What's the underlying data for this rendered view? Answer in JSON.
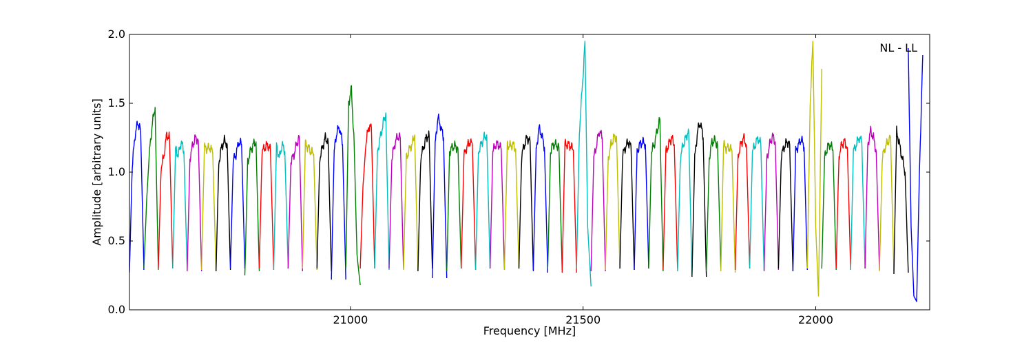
{
  "chart_data": {
    "type": "line",
    "title": "",
    "annotation": "NL - LL",
    "xlabel": "Frequency [MHz]",
    "ylabel": "Amplitude [arbitrary units]",
    "xlim": [
      20525,
      22245
    ],
    "ylim": [
      0.0,
      2.0
    ],
    "xticks": [
      21000,
      21500,
      22000
    ],
    "xtick_labels": [
      "21000",
      "21500",
      "22000"
    ],
    "yticks": [
      0.0,
      0.5,
      1.0,
      1.5,
      2.0
    ],
    "ytick_labels": [
      "0.0",
      "0.5",
      "1.0",
      "1.5",
      "2.0"
    ],
    "grid": false,
    "legend": "none",
    "color_cycle": [
      "#0000ff",
      "#008000",
      "#ff0000",
      "#00bfbf",
      "#bf00bf",
      "#bfbf00",
      "#000000"
    ],
    "background_trace_color": "#bbbbbb",
    "segment_width_mhz": 31.5,
    "series": [
      {
        "color": "#0000ff",
        "x": [
          20525,
          20531,
          20537,
          20543,
          20549,
          20556
        ],
        "y": [
          0.27,
          1.05,
          1.27,
          1.36,
          1.3,
          0.29
        ]
      },
      {
        "color": "#008000",
        "x": [
          20556,
          20562,
          20568,
          20574,
          20580,
          20587
        ],
        "y": [
          0.3,
          0.8,
          1.15,
          1.35,
          1.47,
          0.29
        ]
      },
      {
        "color": "#ff0000",
        "x": [
          20587,
          20593,
          20599,
          20605,
          20611,
          20618
        ],
        "y": [
          0.3,
          1.03,
          1.12,
          1.27,
          1.25,
          0.3
        ]
      },
      {
        "color": "#00bfbf",
        "x": [
          20618,
          20624,
          20630,
          20636,
          20642,
          20649
        ],
        "y": [
          0.3,
          1.17,
          1.12,
          1.22,
          1.15,
          0.29
        ]
      },
      {
        "color": "#bf00bf",
        "x": [
          20649,
          20655,
          20661,
          20667,
          20673,
          20680
        ],
        "y": [
          0.28,
          1.1,
          1.2,
          1.25,
          1.23,
          0.28
        ]
      },
      {
        "color": "#bfbf00",
        "x": [
          20680,
          20686,
          20692,
          20698,
          20704,
          20711
        ],
        "y": [
          0.29,
          1.18,
          1.17,
          1.18,
          1.14,
          0.28
        ]
      },
      {
        "color": "#000000",
        "x": [
          20711,
          20717,
          20723,
          20729,
          20735,
          20742
        ],
        "y": [
          0.28,
          1.07,
          1.18,
          1.23,
          1.2,
          0.29
        ]
      },
      {
        "color": "#0000ff",
        "x": [
          20742,
          20748,
          20754,
          20760,
          20766,
          20773
        ],
        "y": [
          0.3,
          1.08,
          1.13,
          1.22,
          1.2,
          0.3
        ]
      },
      {
        "color": "#008000",
        "x": [
          20773,
          20779,
          20785,
          20791,
          20797,
          20804
        ],
        "y": [
          0.25,
          1.07,
          1.15,
          1.2,
          1.22,
          0.28
        ]
      },
      {
        "color": "#ff0000",
        "x": [
          20804,
          20810,
          20816,
          20822,
          20828,
          20835
        ],
        "y": [
          0.3,
          1.15,
          1.18,
          1.2,
          1.16,
          0.29
        ]
      },
      {
        "color": "#00bfbf",
        "x": [
          20835,
          20841,
          20847,
          20853,
          20859,
          20866
        ],
        "y": [
          0.29,
          1.2,
          1.1,
          1.2,
          1.15,
          0.3
        ]
      },
      {
        "color": "#bf00bf",
        "x": [
          20866,
          20872,
          20878,
          20884,
          20890,
          20897
        ],
        "y": [
          0.3,
          1.08,
          1.12,
          1.2,
          1.26,
          0.28
        ]
      },
      {
        "color": "#bfbf00",
        "x": [
          20897,
          20903,
          20909,
          20915,
          20921,
          20928
        ],
        "y": [
          0.3,
          1.2,
          1.18,
          1.15,
          1.13,
          0.29
        ]
      },
      {
        "color": "#000000",
        "x": [
          20928,
          20934,
          20940,
          20946,
          20952,
          20959
        ],
        "y": [
          0.3,
          1.1,
          1.18,
          1.25,
          1.22,
          0.28
        ]
      },
      {
        "color": "#0000ff",
        "x": [
          20959,
          20965,
          20971,
          20977,
          20983,
          20990
        ],
        "y": [
          0.22,
          1.15,
          1.3,
          1.32,
          1.2,
          0.22
        ]
      },
      {
        "color": "#008000",
        "x": [
          20990,
          20996,
          21002,
          21008,
          21014,
          21021
        ],
        "y": [
          0.3,
          1.5,
          1.6,
          1.2,
          0.4,
          0.18
        ]
      },
      {
        "color": "#ff0000",
        "x": [
          21021,
          21027,
          21033,
          21039,
          21045,
          21052
        ],
        "y": [
          0.3,
          0.9,
          1.2,
          1.33,
          1.32,
          0.3
        ]
      },
      {
        "color": "#00bfbf",
        "x": [
          21052,
          21058,
          21064,
          21070,
          21076,
          21083
        ],
        "y": [
          0.3,
          1.15,
          1.25,
          1.35,
          1.43,
          0.29
        ]
      },
      {
        "color": "#bf00bf",
        "x": [
          21083,
          21089,
          21095,
          21101,
          21107,
          21114
        ],
        "y": [
          0.3,
          1.1,
          1.2,
          1.26,
          1.25,
          0.3
        ]
      },
      {
        "color": "#bfbf00",
        "x": [
          21114,
          21120,
          21126,
          21132,
          21138,
          21145
        ],
        "y": [
          0.29,
          1.1,
          1.16,
          1.2,
          1.27,
          0.29
        ]
      },
      {
        "color": "#000000",
        "x": [
          21145,
          21151,
          21157,
          21163,
          21169,
          21176
        ],
        "y": [
          0.28,
          1.1,
          1.18,
          1.25,
          1.27,
          0.3
        ]
      },
      {
        "color": "#0000ff",
        "x": [
          21176,
          21182,
          21188,
          21194,
          21200,
          21207
        ],
        "y": [
          0.23,
          1.2,
          1.4,
          1.33,
          1.25,
          0.23
        ]
      },
      {
        "color": "#008000",
        "x": [
          21207,
          21213,
          21219,
          21225,
          21231,
          21238
        ],
        "y": [
          0.28,
          1.15,
          1.18,
          1.19,
          1.17,
          0.3
        ]
      },
      {
        "color": "#ff0000",
        "x": [
          21238,
          21244,
          21250,
          21256,
          21262,
          21269
        ],
        "y": [
          0.3,
          1.12,
          1.18,
          1.22,
          1.2,
          0.29
        ]
      },
      {
        "color": "#00bfbf",
        "x": [
          21269,
          21275,
          21281,
          21287,
          21293,
          21300
        ],
        "y": [
          0.29,
          1.15,
          1.2,
          1.25,
          1.27,
          0.3
        ]
      },
      {
        "color": "#bf00bf",
        "x": [
          21300,
          21306,
          21312,
          21318,
          21324,
          21331
        ],
        "y": [
          0.3,
          1.15,
          1.2,
          1.2,
          1.17,
          0.29
        ]
      },
      {
        "color": "#bfbf00",
        "x": [
          21331,
          21337,
          21343,
          21349,
          21355,
          21362
        ],
        "y": [
          0.29,
          1.2,
          1.19,
          1.2,
          1.17,
          0.3
        ]
      },
      {
        "color": "#000000",
        "x": [
          21362,
          21368,
          21374,
          21380,
          21386,
          21393
        ],
        "y": [
          0.3,
          1.12,
          1.2,
          1.25,
          1.22,
          0.29
        ]
      },
      {
        "color": "#0000ff",
        "x": [
          21393,
          21399,
          21405,
          21411,
          21417,
          21424
        ],
        "y": [
          0.28,
          1.15,
          1.32,
          1.27,
          1.18,
          0.27
        ]
      },
      {
        "color": "#008000",
        "x": [
          21424,
          21430,
          21436,
          21442,
          21448,
          21455
        ],
        "y": [
          0.3,
          1.15,
          1.2,
          1.2,
          1.18,
          0.29
        ]
      },
      {
        "color": "#ff0000",
        "x": [
          21455,
          21461,
          21467,
          21473,
          21479,
          21486
        ],
        "y": [
          0.27,
          1.2,
          1.2,
          1.19,
          1.16,
          0.27
        ]
      },
      {
        "color": "#00bfbf",
        "x": [
          21486,
          21492,
          21498,
          21504,
          21510,
          21517
        ],
        "y": [
          0.3,
          1.3,
          1.6,
          1.95,
          0.6,
          0.17
        ]
      },
      {
        "color": "#bf00bf",
        "x": [
          21517,
          21523,
          21529,
          21535,
          21541,
          21548
        ],
        "y": [
          0.28,
          1.1,
          1.2,
          1.3,
          1.25,
          0.28
        ]
      },
      {
        "color": "#bfbf00",
        "x": [
          21548,
          21554,
          21560,
          21566,
          21572,
          21579
        ],
        "y": [
          0.29,
          1.1,
          1.2,
          1.25,
          1.26,
          0.3
        ]
      },
      {
        "color": "#000000",
        "x": [
          21579,
          21585,
          21591,
          21597,
          21603,
          21610
        ],
        "y": [
          0.3,
          1.12,
          1.18,
          1.22,
          1.18,
          0.29
        ]
      },
      {
        "color": "#0000ff",
        "x": [
          21610,
          21616,
          21622,
          21628,
          21634,
          21641
        ],
        "y": [
          0.29,
          1.15,
          1.2,
          1.22,
          1.2,
          0.3
        ]
      },
      {
        "color": "#008000",
        "x": [
          21641,
          21647,
          21653,
          21659,
          21665,
          21672
        ],
        "y": [
          0.3,
          1.15,
          1.2,
          1.3,
          1.38,
          0.28
        ]
      },
      {
        "color": "#ff0000",
        "x": [
          21672,
          21678,
          21684,
          21690,
          21696,
          21703
        ],
        "y": [
          0.29,
          1.15,
          1.2,
          1.25,
          1.2,
          0.3
        ]
      },
      {
        "color": "#00bfbf",
        "x": [
          21703,
          21709,
          21715,
          21721,
          21727,
          21734
        ],
        "y": [
          0.28,
          1.1,
          1.2,
          1.25,
          1.3,
          0.26
        ]
      },
      {
        "color": "#000000",
        "x": [
          21734,
          21740,
          21746,
          21752,
          21758,
          21765
        ],
        "y": [
          0.24,
          1.1,
          1.3,
          1.36,
          1.25,
          0.24
        ]
      },
      {
        "color": "#008000",
        "x": [
          21765,
          21771,
          21777,
          21783,
          21789,
          21796
        ],
        "y": [
          0.28,
          1.1,
          1.22,
          1.23,
          1.2,
          0.3
        ]
      },
      {
        "color": "#bfbf00",
        "x": [
          21796,
          21802,
          21808,
          21814,
          21820,
          21827
        ],
        "y": [
          0.28,
          1.2,
          1.17,
          1.18,
          1.15,
          0.27
        ]
      },
      {
        "color": "#ff0000",
        "x": [
          21827,
          21833,
          21839,
          21845,
          21851,
          21858
        ],
        "y": [
          0.29,
          1.12,
          1.2,
          1.25,
          1.2,
          0.3
        ]
      },
      {
        "color": "#00bfbf",
        "x": [
          21858,
          21864,
          21870,
          21876,
          21882,
          21889
        ],
        "y": [
          0.3,
          1.15,
          1.2,
          1.25,
          1.2,
          0.29
        ]
      },
      {
        "color": "#bf00bf",
        "x": [
          21889,
          21895,
          21901,
          21907,
          21913,
          21920
        ],
        "y": [
          0.28,
          1.1,
          1.2,
          1.26,
          1.22,
          0.29
        ]
      },
      {
        "color": "#000000",
        "x": [
          21920,
          21926,
          21932,
          21938,
          21944,
          21951
        ],
        "y": [
          0.3,
          1.12,
          1.18,
          1.22,
          1.2,
          0.28
        ]
      },
      {
        "color": "#0000ff",
        "x": [
          21951,
          21957,
          21963,
          21969,
          21975,
          21982
        ],
        "y": [
          0.28,
          1.15,
          1.2,
          1.24,
          1.18,
          0.29
        ]
      },
      {
        "color": "#bfbf00",
        "x": [
          21982,
          21988,
          21994,
          22000,
          22006,
          22013
        ],
        "y": [
          0.3,
          1.5,
          1.95,
          0.6,
          0.1,
          1.75
        ]
      },
      {
        "color": "#008000",
        "x": [
          22013,
          22019,
          22025,
          22031,
          22037,
          22044
        ],
        "y": [
          0.3,
          1.1,
          1.18,
          1.2,
          1.16,
          0.29
        ]
      },
      {
        "color": "#ff0000",
        "x": [
          22044,
          22050,
          22056,
          22062,
          22068,
          22075
        ],
        "y": [
          0.3,
          1.12,
          1.2,
          1.22,
          1.18,
          0.29
        ]
      },
      {
        "color": "#00bfbf",
        "x": [
          22075,
          22081,
          22087,
          22093,
          22099,
          22106
        ],
        "y": [
          0.29,
          1.15,
          1.2,
          1.25,
          1.22,
          0.3
        ]
      },
      {
        "color": "#bf00bf",
        "x": [
          22106,
          22112,
          22118,
          22124,
          22130,
          22137
        ],
        "y": [
          0.3,
          1.2,
          1.3,
          1.25,
          1.15,
          0.29
        ]
      },
      {
        "color": "#bfbf00",
        "x": [
          22137,
          22143,
          22149,
          22155,
          22161,
          22168
        ],
        "y": [
          0.28,
          1.1,
          1.18,
          1.22,
          1.25,
          0.27
        ]
      },
      {
        "color": "#000000",
        "x": [
          22168,
          22174,
          22180,
          22186,
          22192,
          22199
        ],
        "y": [
          0.26,
          1.3,
          1.2,
          1.1,
          1.0,
          0.27
        ]
      },
      {
        "color": "#0000ff",
        "x": [
          22199,
          22205,
          22211,
          22217,
          22223,
          22230
        ],
        "y": [
          1.9,
          0.6,
          0.1,
          0.06,
          1.0,
          1.85
        ]
      }
    ]
  }
}
